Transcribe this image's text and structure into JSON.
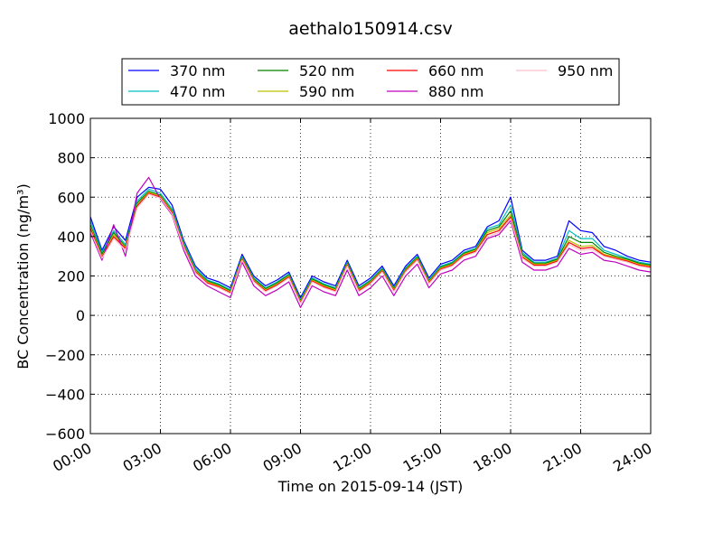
{
  "chart_data": {
    "type": "line",
    "title": "aethalo150914.csv",
    "xlabel": "Time on 2015-09-14 (JST)",
    "ylabel": "BC Concentration (ng/m³)",
    "xlim": [
      "00:00",
      "24:00"
    ],
    "ylim": [
      -600,
      1000
    ],
    "x_ticks": [
      "00:00",
      "03:00",
      "06:00",
      "09:00",
      "12:00",
      "15:00",
      "18:00",
      "21:00",
      "24:00"
    ],
    "y_ticks": [
      "−600",
      "−400",
      "−200",
      "0",
      "200",
      "400",
      "600",
      "800",
      "1000"
    ],
    "grid": true,
    "legend": "top-center",
    "x": [
      "00:00",
      "00:30",
      "01:00",
      "01:30",
      "02:00",
      "02:30",
      "03:00",
      "03:30",
      "04:00",
      "04:30",
      "05:00",
      "05:30",
      "06:00",
      "06:30",
      "07:00",
      "07:30",
      "08:00",
      "08:30",
      "09:00",
      "09:30",
      "10:00",
      "10:30",
      "11:00",
      "11:30",
      "12:00",
      "12:30",
      "13:00",
      "13:30",
      "14:00",
      "14:30",
      "15:00",
      "15:30",
      "16:00",
      "16:30",
      "17:00",
      "17:30",
      "18:00",
      "18:30",
      "19:00",
      "19:30",
      "20:00",
      "20:30",
      "21:00",
      "21:30",
      "22:00",
      "22:30",
      "23:00",
      "23:30",
      "24:00"
    ],
    "series": [
      {
        "name": "370 nm",
        "color": "#0000ff",
        "values": [
          500,
          330,
          450,
          380,
          600,
          650,
          640,
          560,
          380,
          250,
          190,
          170,
          140,
          310,
          200,
          150,
          180,
          220,
          90,
          200,
          170,
          150,
          280,
          150,
          190,
          250,
          150,
          250,
          310,
          190,
          260,
          280,
          330,
          350,
          450,
          480,
          600,
          330,
          280,
          280,
          300,
          480,
          430,
          420,
          350,
          330,
          300,
          280,
          270
        ]
      },
      {
        "name": "470 nm",
        "color": "#00bfbf",
        "values": [
          480,
          320,
          430,
          360,
          580,
          640,
          620,
          540,
          370,
          240,
          180,
          160,
          130,
          300,
          190,
          140,
          170,
          210,
          80,
          190,
          160,
          140,
          270,
          140,
          180,
          240,
          140,
          240,
          300,
          180,
          250,
          270,
          320,
          340,
          440,
          460,
          560,
          320,
          270,
          270,
          290,
          430,
          390,
          390,
          330,
          310,
          290,
          270,
          260
        ]
      },
      {
        "name": "520 nm",
        "color": "#008000",
        "values": [
          460,
          310,
          420,
          350,
          570,
          630,
          610,
          530,
          360,
          230,
          175,
          155,
          125,
          295,
          185,
          135,
          165,
          205,
          75,
          185,
          155,
          135,
          265,
          135,
          175,
          235,
          135,
          235,
          295,
          175,
          245,
          265,
          315,
          335,
          430,
          450,
          530,
          310,
          265,
          265,
          285,
          400,
          370,
          370,
          320,
          300,
          285,
          265,
          255
        ]
      },
      {
        "name": "590 nm",
        "color": "#bfbf00",
        "values": [
          450,
          300,
          410,
          345,
          560,
          625,
          605,
          525,
          355,
          225,
          170,
          150,
          120,
          290,
          180,
          130,
          160,
          200,
          70,
          180,
          150,
          130,
          260,
          130,
          170,
          230,
          130,
          230,
          290,
          170,
          240,
          260,
          310,
          330,
          420,
          440,
          510,
          300,
          260,
          260,
          280,
          380,
          350,
          355,
          310,
          295,
          280,
          260,
          250
        ]
      },
      {
        "name": "660 nm",
        "color": "#ff0000",
        "values": [
          440,
          295,
          400,
          340,
          555,
          620,
          600,
          520,
          350,
          220,
          165,
          145,
          115,
          285,
          175,
          125,
          155,
          195,
          65,
          175,
          145,
          125,
          255,
          125,
          165,
          225,
          125,
          225,
          285,
          165,
          235,
          255,
          305,
          325,
          410,
          430,
          500,
          295,
          255,
          255,
          275,
          370,
          340,
          345,
          305,
          290,
          275,
          255,
          245
        ]
      },
      {
        "name": "880 nm",
        "color": "#bf00bf",
        "values": [
          420,
          280,
          460,
          300,
          620,
          700,
          590,
          510,
          330,
          200,
          150,
          120,
          90,
          270,
          150,
          100,
          130,
          170,
          40,
          150,
          120,
          100,
          230,
          100,
          140,
          200,
          100,
          200,
          260,
          140,
          210,
          230,
          280,
          300,
          390,
          410,
          480,
          270,
          230,
          230,
          250,
          340,
          310,
          320,
          280,
          270,
          250,
          230,
          220
        ]
      },
      {
        "name": "950 nm",
        "color": "#ffc0cb",
        "values": [
          430,
          290,
          390,
          330,
          545,
          615,
          595,
          515,
          345,
          215,
          160,
          140,
          110,
          280,
          170,
          120,
          150,
          190,
          60,
          170,
          140,
          120,
          250,
          120,
          160,
          220,
          120,
          220,
          280,
          160,
          230,
          250,
          300,
          320,
          400,
          420,
          490,
          290,
          250,
          250,
          270,
          360,
          330,
          335,
          300,
          285,
          270,
          250,
          240
        ]
      }
    ]
  }
}
